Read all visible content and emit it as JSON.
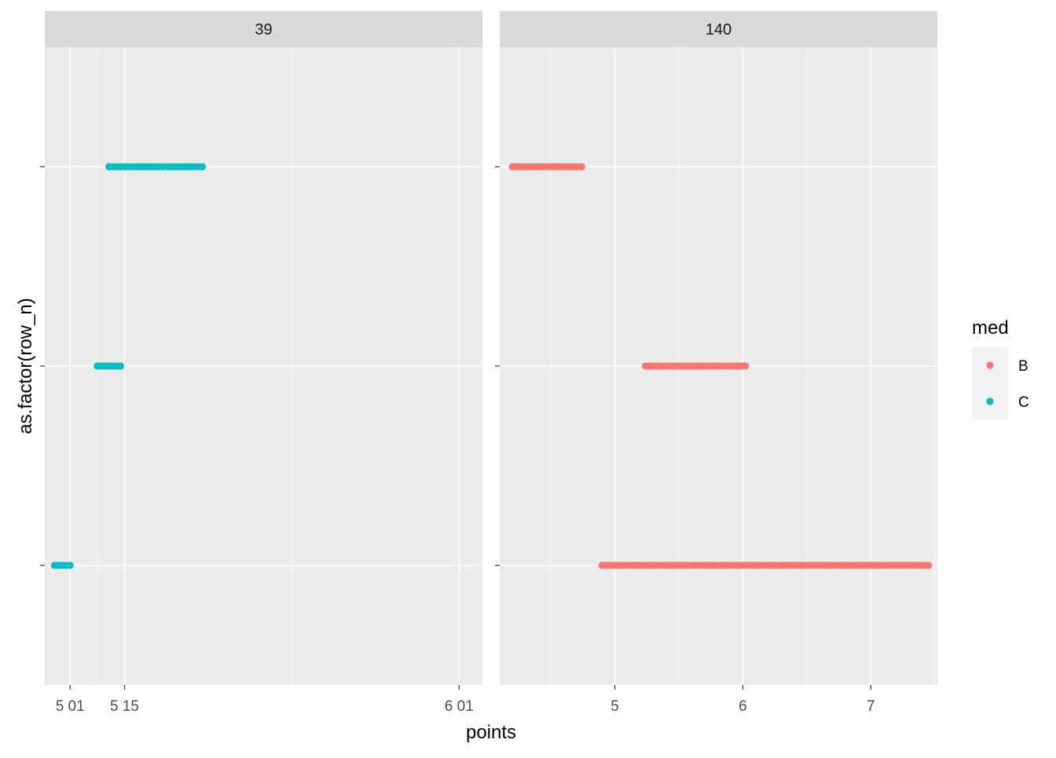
{
  "chart_data": {
    "type": "scatter",
    "facet_variable": "",
    "xlabel": "points",
    "ylabel": "as.factor(row_n)",
    "y_categories_count": 3,
    "grid": true,
    "legend": {
      "title": "med",
      "placement": "right",
      "entries": [
        {
          "label": "B",
          "color": "#F8766D"
        },
        {
          "label": "C",
          "color": "#00BFC4"
        }
      ]
    },
    "facets": [
      {
        "label": "39",
        "xlim": [
          4.945,
          6.07
        ],
        "x_ticks": [
          5.01,
          5.15,
          6.01
        ],
        "x_tick_labels": [
          "5 01",
          "5 15",
          "6 01"
        ],
        "x_minor": [
          5.08,
          5.58
        ],
        "series": [
          {
            "name": "C",
            "color": "#00BFC4",
            "row": 1,
            "x": [
              4.97,
              4.98,
              4.99,
              5.0,
              5.01
            ]
          },
          {
            "name": "C",
            "color": "#00BFC4",
            "row": 2,
            "x": [
              5.08,
              5.09,
              5.1,
              5.11,
              5.12,
              5.13,
              5.14
            ]
          },
          {
            "name": "C",
            "color": "#00BFC4",
            "row": 3,
            "x": [
              5.11,
              5.12,
              5.13,
              5.14,
              5.15,
              5.16,
              5.17,
              5.18,
              5.19,
              5.2,
              5.21,
              5.22,
              5.23,
              5.24,
              5.25,
              5.26,
              5.27,
              5.28,
              5.29,
              5.3,
              5.31,
              5.32,
              5.33,
              5.34,
              5.35
            ]
          }
        ]
      },
      {
        "label": "140",
        "xlim": [
          4.1,
          7.52
        ],
        "x_ticks": [
          5,
          6,
          7
        ],
        "x_tick_labels": [
          "5",
          "6",
          "7"
        ],
        "x_minor": [
          4.5,
          5.5,
          6.5,
          7.5
        ],
        "series": [
          {
            "name": "B",
            "color": "#F8766D",
            "row": 1,
            "x_range": [
              4.9,
              7.45
            ],
            "step": 0.03
          },
          {
            "name": "B",
            "color": "#F8766D",
            "row": 2,
            "x_range": [
              5.24,
              6.02
            ],
            "step": 0.03
          },
          {
            "name": "B",
            "color": "#F8766D",
            "row": 3,
            "x_range": [
              4.2,
              4.75
            ],
            "step": 0.03
          }
        ]
      }
    ]
  }
}
